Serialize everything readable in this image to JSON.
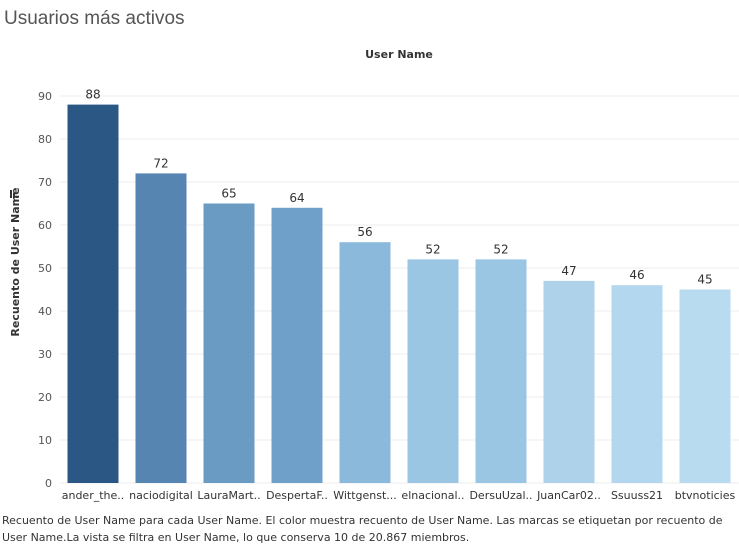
{
  "title": "Usuarios más activos",
  "caption": "Recuento de User Name para cada User Name. El color muestra recuento de User Name. Las marcas se etiquetan por recuento de User Name.La vista se filtra en User Name, lo que conserva 10 de 20.867 miembros.",
  "chart_data": {
    "type": "bar",
    "title": "User Name",
    "xlabel": "",
    "ylabel": "Recuento de User Name",
    "categories": [
      "ander_the..",
      "naciodigital",
      "LauraMart..",
      "DespertaF..",
      "Wittgenst...",
      "elnacional..",
      "DersuUzal..",
      "JuanCar02..",
      "Ssuuss21",
      "btvnoticies"
    ],
    "values": [
      88,
      72,
      65,
      64,
      56,
      52,
      52,
      47,
      46,
      45
    ],
    "ylim": [
      0,
      95
    ],
    "yticks": [
      0,
      10,
      20,
      30,
      40,
      50,
      60,
      70,
      80,
      90
    ],
    "grid": true,
    "colors": [
      "#2a5783",
      "#5685b1",
      "#6a9bc3",
      "#6ea0c9",
      "#8ab9dc",
      "#9ac6e4",
      "#9ac6e4",
      "#aed2ea",
      "#b3d7ee",
      "#b8dbf0"
    ]
  }
}
